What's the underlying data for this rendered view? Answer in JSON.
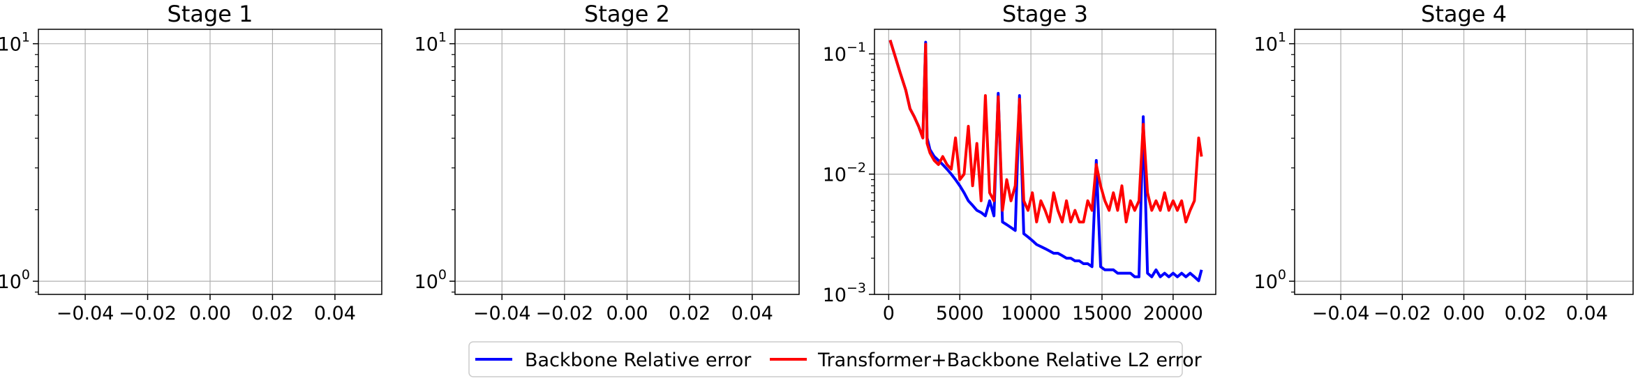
{
  "chart_data": [
    {
      "type": "line",
      "title": "Stage 1",
      "yscale": "log",
      "ylim": [
        0.88,
        11.5
      ],
      "xlim": [
        -0.055,
        0.055
      ],
      "xticks": [
        -0.04,
        -0.02,
        0.0,
        0.02,
        0.04
      ],
      "xtick_labels": [
        "−0.04",
        "−0.02",
        "0.00",
        "0.02",
        "0.04"
      ],
      "yticks": [
        1,
        10
      ],
      "ytick_labels": [
        {
          "base": "10",
          "exp": "0"
        },
        {
          "base": "10",
          "exp": "1"
        }
      ],
      "grid": true,
      "series": []
    },
    {
      "type": "line",
      "title": "Stage 2",
      "yscale": "log",
      "ylim": [
        0.88,
        11.5
      ],
      "xlim": [
        -0.055,
        0.055
      ],
      "xticks": [
        -0.04,
        -0.02,
        0.0,
        0.02,
        0.04
      ],
      "xtick_labels": [
        "−0.04",
        "−0.02",
        "0.00",
        "0.02",
        "0.04"
      ],
      "yticks": [
        1,
        10
      ],
      "ytick_labels": [
        {
          "base": "10",
          "exp": "0"
        },
        {
          "base": "10",
          "exp": "1"
        }
      ],
      "grid": true,
      "series": []
    },
    {
      "type": "line",
      "title": "Stage 3",
      "yscale": "log",
      "ylim": [
        0.001,
        0.16
      ],
      "xlim": [
        -1000,
        23000
      ],
      "xticks": [
        0,
        5000,
        10000,
        15000,
        20000
      ],
      "xtick_labels": [
        "0",
        "5000",
        "10000",
        "15000",
        "20000"
      ],
      "yticks": [
        0.001,
        0.01,
        0.1
      ],
      "ytick_labels": [
        {
          "base": "10",
          "exp": "−3"
        },
        {
          "base": "10",
          "exp": "−2"
        },
        {
          "base": "10",
          "exp": "−1"
        }
      ],
      "grid": true,
      "series": [
        {
          "name": "Backbone Relative error",
          "color": "#0000ff",
          "x": [
            100,
            400,
            800,
            1200,
            1500,
            1800,
            2100,
            2400,
            2600,
            2700,
            2900,
            3200,
            3500,
            3800,
            4100,
            4400,
            4700,
            5000,
            5300,
            5600,
            5900,
            6200,
            6500,
            6800,
            7100,
            7400,
            7700,
            8000,
            8300,
            8600,
            8900,
            9200,
            9500,
            9800,
            10100,
            10400,
            10700,
            11000,
            11300,
            11600,
            11900,
            12200,
            12500,
            12800,
            13100,
            13400,
            13700,
            14000,
            14300,
            14600,
            14900,
            15200,
            15500,
            15800,
            16100,
            16400,
            16700,
            17000,
            17300,
            17600,
            17900,
            18200,
            18500,
            18800,
            19100,
            19400,
            19700,
            20000,
            20300,
            20600,
            20900,
            21200,
            21500,
            21800,
            22000
          ],
          "y": [
            0.13,
            0.1,
            0.07,
            0.05,
            0.035,
            0.03,
            0.025,
            0.02,
            0.125,
            0.02,
            0.016,
            0.014,
            0.013,
            0.012,
            0.011,
            0.01,
            0.009,
            0.008,
            0.007,
            0.006,
            0.0055,
            0.005,
            0.0048,
            0.0045,
            0.006,
            0.0045,
            0.047,
            0.004,
            0.0038,
            0.0036,
            0.0034,
            0.045,
            0.0032,
            0.003,
            0.0028,
            0.0026,
            0.0025,
            0.0024,
            0.0023,
            0.0022,
            0.0022,
            0.0021,
            0.002,
            0.002,
            0.0019,
            0.0019,
            0.0018,
            0.0018,
            0.0017,
            0.013,
            0.0017,
            0.0016,
            0.0016,
            0.0016,
            0.0015,
            0.0015,
            0.0015,
            0.0015,
            0.0014,
            0.0014,
            0.03,
            0.0015,
            0.0014,
            0.0016,
            0.0014,
            0.0015,
            0.0014,
            0.0015,
            0.0014,
            0.0015,
            0.0014,
            0.0015,
            0.0014,
            0.0013,
            0.0016
          ]
        },
        {
          "name": "Transformer+Backbone Relative L2 error",
          "color": "#ff0000",
          "x": [
            100,
            400,
            800,
            1200,
            1500,
            1800,
            2100,
            2400,
            2600,
            2700,
            2900,
            3200,
            3500,
            3800,
            4100,
            4400,
            4700,
            5000,
            5300,
            5600,
            5900,
            6200,
            6500,
            6800,
            7100,
            7400,
            7700,
            8000,
            8300,
            8600,
            8900,
            9200,
            9500,
            9800,
            10100,
            10400,
            10700,
            11000,
            11300,
            11600,
            11900,
            12200,
            12500,
            12800,
            13100,
            13400,
            13700,
            14000,
            14300,
            14600,
            14900,
            15200,
            15500,
            15800,
            16100,
            16400,
            16700,
            17000,
            17300,
            17600,
            17900,
            18200,
            18500,
            18800,
            19100,
            19400,
            19700,
            20000,
            20300,
            20600,
            20900,
            21200,
            21500,
            21800,
            22000
          ],
          "y": [
            0.13,
            0.1,
            0.07,
            0.05,
            0.035,
            0.03,
            0.025,
            0.02,
            0.12,
            0.018,
            0.015,
            0.013,
            0.012,
            0.014,
            0.012,
            0.011,
            0.02,
            0.009,
            0.01,
            0.025,
            0.008,
            0.018,
            0.006,
            0.045,
            0.007,
            0.006,
            0.044,
            0.005,
            0.009,
            0.006,
            0.008,
            0.042,
            0.006,
            0.005,
            0.007,
            0.004,
            0.006,
            0.005,
            0.004,
            0.007,
            0.005,
            0.004,
            0.006,
            0.004,
            0.005,
            0.004,
            0.004,
            0.006,
            0.005,
            0.012,
            0.008,
            0.006,
            0.005,
            0.007,
            0.005,
            0.008,
            0.004,
            0.006,
            0.005,
            0.006,
            0.026,
            0.007,
            0.005,
            0.006,
            0.005,
            0.007,
            0.005,
            0.006,
            0.005,
            0.006,
            0.004,
            0.005,
            0.006,
            0.02,
            0.014
          ]
        }
      ]
    },
    {
      "type": "line",
      "title": "Stage 4",
      "yscale": "log",
      "ylim": [
        0.88,
        11.5
      ],
      "xlim": [
        -0.055,
        0.055
      ],
      "xticks": [
        -0.04,
        -0.02,
        0.0,
        0.02,
        0.04
      ],
      "xtick_labels": [
        "−0.04",
        "−0.02",
        "0.00",
        "0.02",
        "0.04"
      ],
      "yticks": [
        1,
        10
      ],
      "ytick_labels": [
        {
          "base": "10",
          "exp": "0"
        },
        {
          "base": "10",
          "exp": "1"
        }
      ],
      "grid": true,
      "series": []
    }
  ],
  "legend": {
    "placement": "bottom-center",
    "items": [
      {
        "label": "Backbone Relative error",
        "color": "#0000ff"
      },
      {
        "label": "Transformer+Backbone Relative L2 error",
        "color": "#ff0000"
      }
    ]
  }
}
